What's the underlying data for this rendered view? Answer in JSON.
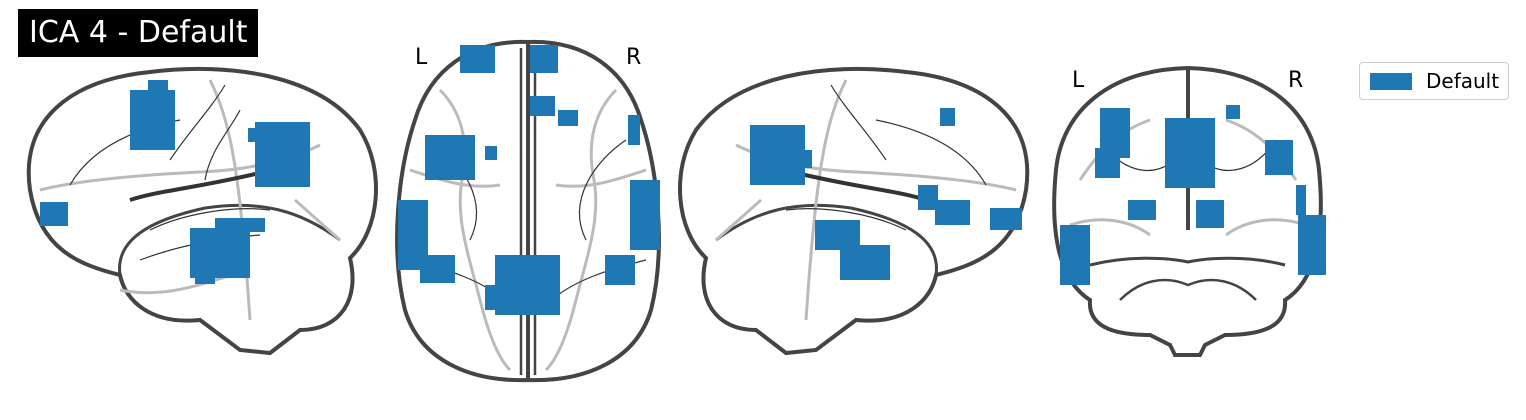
{
  "title": "ICA 4 - Default",
  "legend": {
    "label": "Default",
    "color": "#1f77b4"
  },
  "views": {
    "axial": {
      "left_label": "L",
      "right_label": "R"
    },
    "coronal": {
      "left_label": "L",
      "right_label": "R"
    }
  },
  "colors": {
    "outline": "#444444",
    "sulci": "#bbbbbb",
    "blob": "#1f77b4"
  }
}
